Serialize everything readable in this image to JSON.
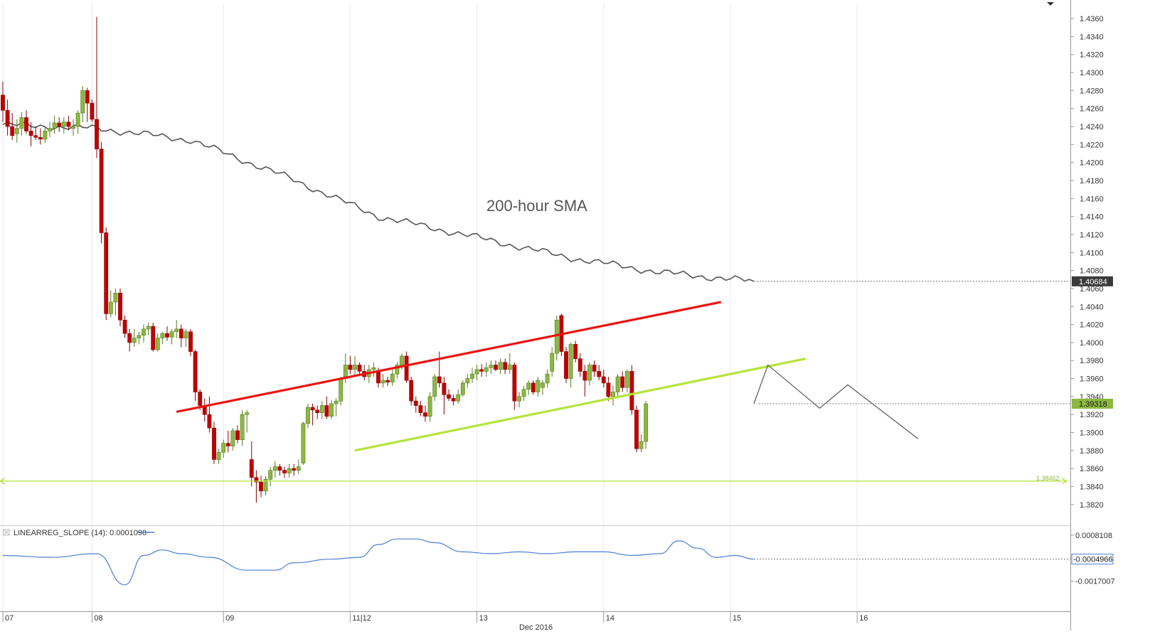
{
  "chart_data": [
    {
      "type": "candlestick",
      "x_axis": {
        "month_label": "Dec 2016",
        "date_labels": [
          {
            "label": "07",
            "x": 0
          },
          {
            "label": "08",
            "x": 19
          },
          {
            "label": "09",
            "x": 47
          },
          {
            "label": "11|12",
            "x": 74
          },
          {
            "label": "13",
            "x": 101
          },
          {
            "label": "14",
            "x": 128
          },
          {
            "label": "15",
            "x": 155
          },
          {
            "label": "16",
            "x": 182
          }
        ],
        "range": [
          0,
          195
        ]
      },
      "y_axis": {
        "range": [
          1.3808,
          1.4366
        ],
        "ticks": [
          "1.4360",
          "1.4340",
          "1.4320",
          "1.4300",
          "1.4280",
          "1.4260",
          "1.4240",
          "1.4220",
          "1.4200",
          "1.4180",
          "1.4160",
          "1.4140",
          "1.4120",
          "1.4100",
          "1.4080",
          "1.4060",
          "1.4040",
          "1.4020",
          "1.4000",
          "1.3980",
          "1.3960",
          "1.3940",
          "1.3920",
          "1.3900",
          "1.3880",
          "1.3860",
          "1.3840",
          "1.3820"
        ]
      },
      "candles": [
        [
          1.4275,
          1.429,
          1.4245,
          1.4258
        ],
        [
          1.4258,
          1.427,
          1.423,
          1.424
        ],
        [
          1.424,
          1.4255,
          1.4225,
          1.423
        ],
        [
          1.4232,
          1.4248,
          1.4222,
          1.4238
        ],
        [
          1.4238,
          1.4256,
          1.423,
          1.425
        ],
        [
          1.425,
          1.4258,
          1.4232,
          1.4235
        ],
        [
          1.4235,
          1.4245,
          1.4218,
          1.423
        ],
        [
          1.423,
          1.424,
          1.4225,
          1.4228
        ],
        [
          1.4228,
          1.4238,
          1.422,
          1.4226
        ],
        [
          1.4226,
          1.424,
          1.4222,
          1.4235
        ],
        [
          1.4235,
          1.4245,
          1.4228,
          1.4238
        ],
        [
          1.4238,
          1.4252,
          1.4232,
          1.4244
        ],
        [
          1.4244,
          1.425,
          1.4234,
          1.424
        ],
        [
          1.424,
          1.425,
          1.4232,
          1.4245
        ],
        [
          1.4245,
          1.4252,
          1.4236,
          1.424
        ],
        [
          1.4238,
          1.4248,
          1.423,
          1.424
        ],
        [
          1.424,
          1.4258,
          1.4232,
          1.4255
        ],
        [
          1.4255,
          1.4285,
          1.4245,
          1.428
        ],
        [
          1.428,
          1.4283,
          1.4245,
          1.4266
        ],
        [
          1.4266,
          1.427,
          1.4245,
          1.4248
        ],
        [
          1.4248,
          1.4362,
          1.4205,
          1.4215
        ],
        [
          1.4215,
          1.4223,
          1.411,
          1.4122
        ],
        [
          1.4122,
          1.4128,
          1.4025,
          1.4032
        ],
        [
          1.4032,
          1.4058,
          1.4028,
          1.4045
        ],
        [
          1.4045,
          1.406,
          1.403,
          1.4055
        ],
        [
          1.4055,
          1.406,
          1.4018,
          1.4025
        ],
        [
          1.4025,
          1.403,
          1.4005,
          1.401
        ],
        [
          1.401,
          1.4015,
          1.399,
          1.4
        ],
        [
          1.4,
          1.4015,
          1.3995,
          1.4005
        ],
        [
          1.4005,
          1.4012,
          1.3998,
          1.4008
        ],
        [
          1.4008,
          1.402,
          1.4,
          1.4015
        ],
        [
          1.4015,
          1.4022,
          1.4008,
          1.4018
        ],
        [
          1.4018,
          1.4022,
          1.399,
          1.3992
        ],
        [
          1.3992,
          1.401,
          1.399,
          1.4005
        ],
        [
          1.4005,
          1.4012,
          1.3998,
          1.401
        ],
        [
          1.401,
          1.4018,
          1.4002,
          1.4006
        ],
        [
          1.4006,
          1.4015,
          1.3998,
          1.4012
        ],
        [
          1.4012,
          1.4025,
          1.4005,
          1.4015
        ],
        [
          1.4015,
          1.402,
          1.3995,
          1.4005
        ],
        [
          1.4005,
          1.4015,
          1.3995,
          1.4012
        ],
        [
          1.4012,
          1.4015,
          1.3985,
          1.399
        ],
        [
          1.399,
          1.3992,
          1.3935,
          1.3945
        ],
        [
          1.3945,
          1.3948,
          1.3925,
          1.393
        ],
        [
          1.393,
          1.3938,
          1.3912,
          1.392
        ],
        [
          1.392,
          1.394,
          1.39,
          1.3905
        ],
        [
          1.3905,
          1.3912,
          1.3865,
          1.387
        ],
        [
          1.387,
          1.3882,
          1.3865,
          1.3878
        ],
        [
          1.3878,
          1.3892,
          1.3872,
          1.3888
        ],
        [
          1.3888,
          1.3902,
          1.3878,
          1.3885
        ],
        [
          1.3885,
          1.3905,
          1.388,
          1.3902
        ],
        [
          1.3902,
          1.3908,
          1.3888,
          1.3892
        ],
        [
          1.3892,
          1.3925,
          1.3885,
          1.392
        ],
        [
          1.392,
          1.3925,
          1.39,
          1.3922
        ],
        [
          1.387,
          1.389,
          1.384,
          1.385
        ],
        [
          1.385,
          1.3858,
          1.3822,
          1.3845
        ],
        [
          1.3845,
          1.3852,
          1.3828,
          1.3835
        ],
        [
          1.3835,
          1.3852,
          1.383,
          1.3848
        ],
        [
          1.3848,
          1.3862,
          1.384,
          1.3858
        ],
        [
          1.3858,
          1.3868,
          1.385,
          1.3862
        ],
        [
          1.3862,
          1.3865,
          1.3852,
          1.3858
        ],
        [
          1.3858,
          1.3862,
          1.385,
          1.3855
        ],
        [
          1.3855,
          1.3865,
          1.385,
          1.386
        ],
        [
          1.386,
          1.3865,
          1.3852,
          1.3858
        ],
        [
          1.3858,
          1.387,
          1.3854,
          1.3862
        ],
        [
          1.3866,
          1.3912,
          1.3864,
          1.391
        ],
        [
          1.391,
          1.3932,
          1.3905,
          1.3928
        ],
        [
          1.3928,
          1.3932,
          1.3908,
          1.3925
        ],
        [
          1.3925,
          1.393,
          1.3915,
          1.3922
        ],
        [
          1.3922,
          1.3935,
          1.3915,
          1.393
        ],
        [
          1.393,
          1.394,
          1.3915,
          1.3918
        ],
        [
          1.3918,
          1.3936,
          1.3915,
          1.3932
        ],
        [
          1.3932,
          1.3938,
          1.3918,
          1.3935
        ],
        [
          1.3935,
          1.3962,
          1.393,
          1.396
        ],
        [
          1.396,
          1.3988,
          1.3955,
          1.3975
        ],
        [
          1.3975,
          1.3985,
          1.3965,
          1.397
        ],
        [
          1.397,
          1.3985,
          1.3962,
          1.3975
        ],
        [
          1.3975,
          1.3978,
          1.3965,
          1.3968
        ],
        [
          1.3968,
          1.3975,
          1.3958,
          1.3962
        ],
        [
          1.3962,
          1.3975,
          1.3955,
          1.397
        ],
        [
          1.397,
          1.3978,
          1.3962,
          1.3972
        ],
        [
          1.3968,
          1.3972,
          1.395,
          1.3955
        ],
        [
          1.3955,
          1.3965,
          1.395,
          1.3958
        ],
        [
          1.3958,
          1.3962,
          1.3952,
          1.3956
        ],
        [
          1.3956,
          1.397,
          1.3952,
          1.3965
        ],
        [
          1.3965,
          1.3978,
          1.396,
          1.3975
        ],
        [
          1.3975,
          1.3988,
          1.397,
          1.3985
        ],
        [
          1.3985,
          1.399,
          1.3955,
          1.3958
        ],
        [
          1.3958,
          1.3962,
          1.393,
          1.3935
        ],
        [
          1.3935,
          1.394,
          1.3922,
          1.393
        ],
        [
          1.393,
          1.3935,
          1.3918,
          1.3922
        ],
        [
          1.3922,
          1.393,
          1.3912,
          1.3918
        ],
        [
          1.3918,
          1.3945,
          1.3912,
          1.394
        ],
        [
          1.394,
          1.3965,
          1.3935,
          1.3962
        ],
        [
          1.3962,
          1.399,
          1.395,
          1.3955
        ],
        [
          1.3955,
          1.3962,
          1.392,
          1.3942
        ],
        [
          1.3942,
          1.3948,
          1.3935,
          1.3938
        ],
        [
          1.3938,
          1.3942,
          1.393,
          1.3935
        ],
        [
          1.3935,
          1.3948,
          1.3932,
          1.3942
        ],
        [
          1.3942,
          1.3958,
          1.394,
          1.3955
        ],
        [
          1.3955,
          1.3965,
          1.395,
          1.396
        ],
        [
          1.396,
          1.3972,
          1.3955,
          1.3965
        ],
        [
          1.3965,
          1.3975,
          1.3958,
          1.397
        ],
        [
          1.397,
          1.3976,
          1.3962,
          1.3968
        ],
        [
          1.3968,
          1.3978,
          1.3962,
          1.3972
        ],
        [
          1.3972,
          1.398,
          1.3965,
          1.3975
        ],
        [
          1.3975,
          1.398,
          1.3968,
          1.397
        ],
        [
          1.397,
          1.3982,
          1.3965,
          1.3978
        ],
        [
          1.3978,
          1.3982,
          1.3965,
          1.397
        ],
        [
          1.397,
          1.3988,
          1.3965,
          1.3975
        ],
        [
          1.3975,
          1.3978,
          1.3925,
          1.3935
        ],
        [
          1.3935,
          1.3945,
          1.3928,
          1.394
        ],
        [
          1.394,
          1.3952,
          1.3935,
          1.3948
        ],
        [
          1.3948,
          1.3958,
          1.3942,
          1.3955
        ],
        [
          1.3955,
          1.3958,
          1.3942,
          1.3945
        ],
        [
          1.3945,
          1.3962,
          1.394,
          1.3958
        ],
        [
          1.395,
          1.3958,
          1.3942,
          1.3955
        ],
        [
          1.3955,
          1.397,
          1.395,
          1.3965
        ],
        [
          1.3968,
          1.3995,
          1.3962,
          1.3988
        ],
        [
          1.3988,
          1.403,
          1.398,
          1.4025
        ],
        [
          1.403,
          1.4032,
          1.3985,
          1.399
        ],
        [
          1.399,
          1.3995,
          1.3955,
          1.396
        ],
        [
          1.396,
          1.4,
          1.395,
          1.3998
        ],
        [
          1.3998,
          1.4002,
          1.3978,
          1.3982
        ],
        [
          1.3982,
          1.3988,
          1.3962,
          1.3968
        ],
        [
          1.3968,
          1.3975,
          1.394,
          1.3958
        ],
        [
          1.3958,
          1.3978,
          1.3952,
          1.3975
        ],
        [
          1.3975,
          1.398,
          1.3962,
          1.3968
        ],
        [
          1.3968,
          1.3975,
          1.3958,
          1.3962
        ],
        [
          1.3962,
          1.397,
          1.395,
          1.3955
        ],
        [
          1.3955,
          1.3962,
          1.3935,
          1.394
        ],
        [
          1.394,
          1.3952,
          1.393,
          1.3945
        ],
        [
          1.3945,
          1.3965,
          1.394,
          1.3962
        ],
        [
          1.3962,
          1.3968,
          1.3945,
          1.395
        ],
        [
          1.395,
          1.397,
          1.3945,
          1.3968
        ],
        [
          1.3968,
          1.3975,
          1.392,
          1.3925
        ],
        [
          1.3925,
          1.393,
          1.3878,
          1.3882
        ],
        [
          1.3882,
          1.3898,
          1.3878,
          1.389
        ],
        [
          1.389,
          1.3935,
          1.3882,
          1.3932
        ]
      ],
      "sma": {
        "label": "200-hour SMA",
        "value_label": "1.40684",
        "points": [
          [
            0,
            1.4242
          ],
          [
            20,
            1.4238
          ],
          [
            40,
            1.4225
          ],
          [
            60,
            1.4185
          ],
          [
            80,
            1.414
          ],
          [
            100,
            1.4118
          ],
          [
            120,
            1.4095
          ],
          [
            140,
            1.4078
          ],
          [
            160,
            1.4068
          ]
        ]
      },
      "trendlines": [
        {
          "name": "resistance",
          "color": "#ee1111",
          "points": [
            [
              37,
              1.3923
            ],
            [
              153,
              1.4045
            ]
          ]
        },
        {
          "name": "support",
          "color": "#b4e43a",
          "points": [
            [
              75,
              1.388
            ],
            [
              171,
              1.3982
            ]
          ]
        }
      ],
      "projection": [
        [
          160,
          1.3932
        ],
        [
          163,
          1.3975
        ],
        [
          174,
          1.3927
        ],
        [
          180,
          1.3953
        ],
        [
          195,
          1.3893
        ]
      ],
      "current_price": {
        "value": 1.3932,
        "label": "1.39318"
      },
      "support_level": {
        "value": 1.3846,
        "label": "1.38462"
      }
    },
    {
      "type": "line",
      "indicator_label": "LINEARREG_SLOPE (14): 0.0001098",
      "y_axis": {
        "range": [
          -0.0021,
          0.001
        ],
        "ticks": [
          "0.0008108",
          "-0.0017007"
        ]
      },
      "current_value": {
        "value": -0.0004966,
        "label": "-0.0004966"
      },
      "x": [
        0,
        10,
        20,
        26,
        30,
        34,
        38,
        44,
        52,
        58,
        62,
        70,
        76,
        80,
        84,
        88,
        92,
        98,
        104,
        110,
        116,
        122,
        128,
        134,
        140,
        144,
        148,
        152,
        156,
        160
      ],
      "y": [
        -0.0003,
        -0.0004,
        -0.0002,
        -0.0019,
        -0.0003,
        0.0,
        -0.0002,
        -0.0004,
        -0.0011,
        -0.0011,
        -0.0007,
        -0.0005,
        -0.0004,
        0.0003,
        0.0006,
        0.0006,
        0.0004,
        -0.0001,
        -0.0002,
        -0.0001,
        -0.0002,
        -0.0001,
        -0.0001,
        -0.0003,
        -0.0002,
        0.0005,
        0.0001,
        -0.0004,
        -0.0003,
        -0.0005
      ]
    }
  ]
}
